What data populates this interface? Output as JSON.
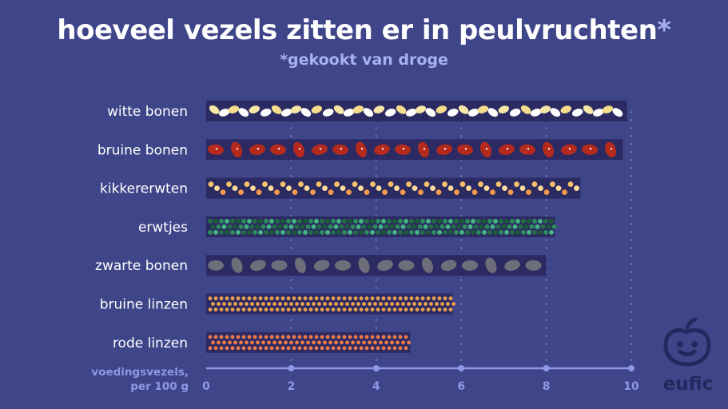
{
  "title": "hoeveel vezels zitten er in peulvruchten",
  "title_star": "*",
  "subtitle": "*gekookt van droge",
  "logo_text": "eufic",
  "colors": {
    "background": "#3f4589",
    "bar_bg": "#2b2a62",
    "axis": "#8f97e6",
    "label": "#ffffff",
    "accent": "#a9b2f0"
  },
  "chart_data": {
    "type": "bar",
    "orientation": "horizontal",
    "title": "hoeveel vezels zitten er in peulvruchten",
    "subtitle": "*gekookt van droge",
    "xlabel": [
      "voedingsvezels,",
      "per 100 g"
    ],
    "xlim": [
      0,
      10
    ],
    "xticks": [
      0,
      2,
      4,
      6,
      8,
      10
    ],
    "grid": "vertical dotted",
    "categories": [
      "witte bonen",
      "bruine bonen",
      "kikkererwten",
      "erwtjes",
      "zwarte bonen",
      "bruine linzen",
      "rode linzen"
    ],
    "values": [
      9.9,
      9.8,
      8.8,
      8.2,
      8.0,
      5.8,
      4.8
    ],
    "bar_patterns": [
      "beans-cream-white",
      "beans-red",
      "chickpeas-orange",
      "peas-green",
      "beans-grey",
      "lentils-orange",
      "lentils-red"
    ]
  }
}
